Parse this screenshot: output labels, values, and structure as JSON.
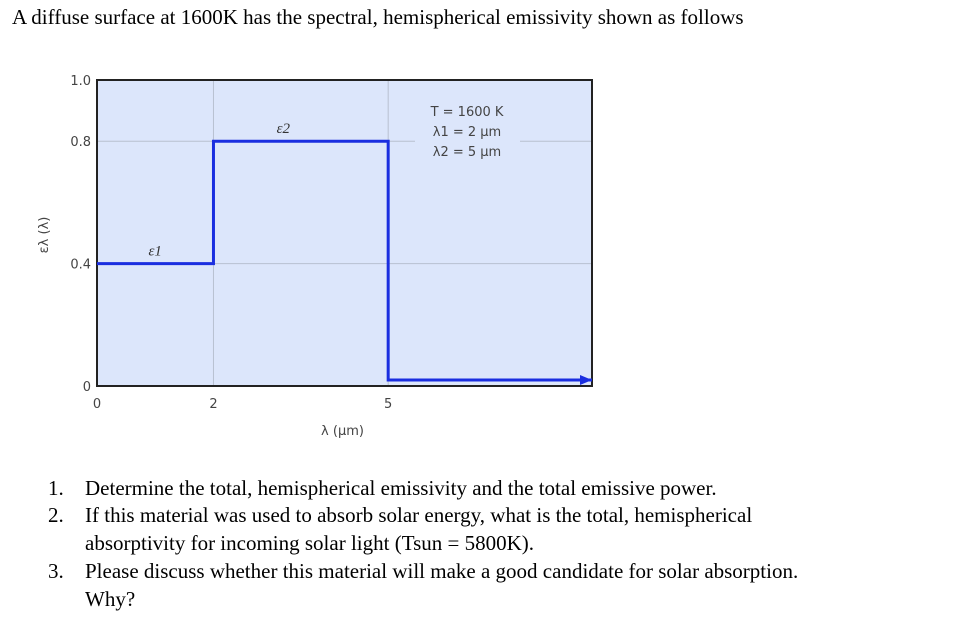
{
  "title": "A diffuse surface at 1600K has the spectral, hemispherical emissivity shown as follows",
  "chart_data": {
    "type": "line",
    "step": true,
    "xlabel": "λ (μm)",
    "ylabel": "ελ (λ)",
    "xlim": [
      0,
      8.5
    ],
    "ylim": [
      0,
      1.0
    ],
    "xticks": [
      "0",
      "2",
      "5"
    ],
    "xtick_values": [
      0,
      2,
      5
    ],
    "yticks": [
      "0",
      "0.4",
      "0.8",
      "1.0"
    ],
    "ytick_values": [
      0,
      0.4,
      0.8,
      1.0
    ],
    "grid": true,
    "background": "#dce6fb",
    "line_color": "#1a2ee0",
    "series": [
      {
        "x": [
          0,
          2,
          2,
          5,
          5,
          8.5
        ],
        "y": [
          0.4,
          0.4,
          0.8,
          0.8,
          0,
          0
        ]
      }
    ],
    "annotations": {
      "eps1": "ε1",
      "eps2": "ε2",
      "temp": "T = 1600 K",
      "lambda1": "λ1 = 2 μm",
      "lambda2": "λ2 = 5 μm"
    }
  },
  "questions": [
    {
      "num": "1.",
      "lines": [
        "Determine the total, hemispherical emissivity and the total emissive power."
      ]
    },
    {
      "num": "2.",
      "lines": [
        "If this material was used to absorb solar energy, what is the total, hemispherical",
        "absorptivity for incoming solar light (Tsun = 5800K)."
      ]
    },
    {
      "num": "3.",
      "lines": [
        "Please discuss whether this material will make a good candidate for solar absorption.",
        "Why?"
      ]
    }
  ]
}
